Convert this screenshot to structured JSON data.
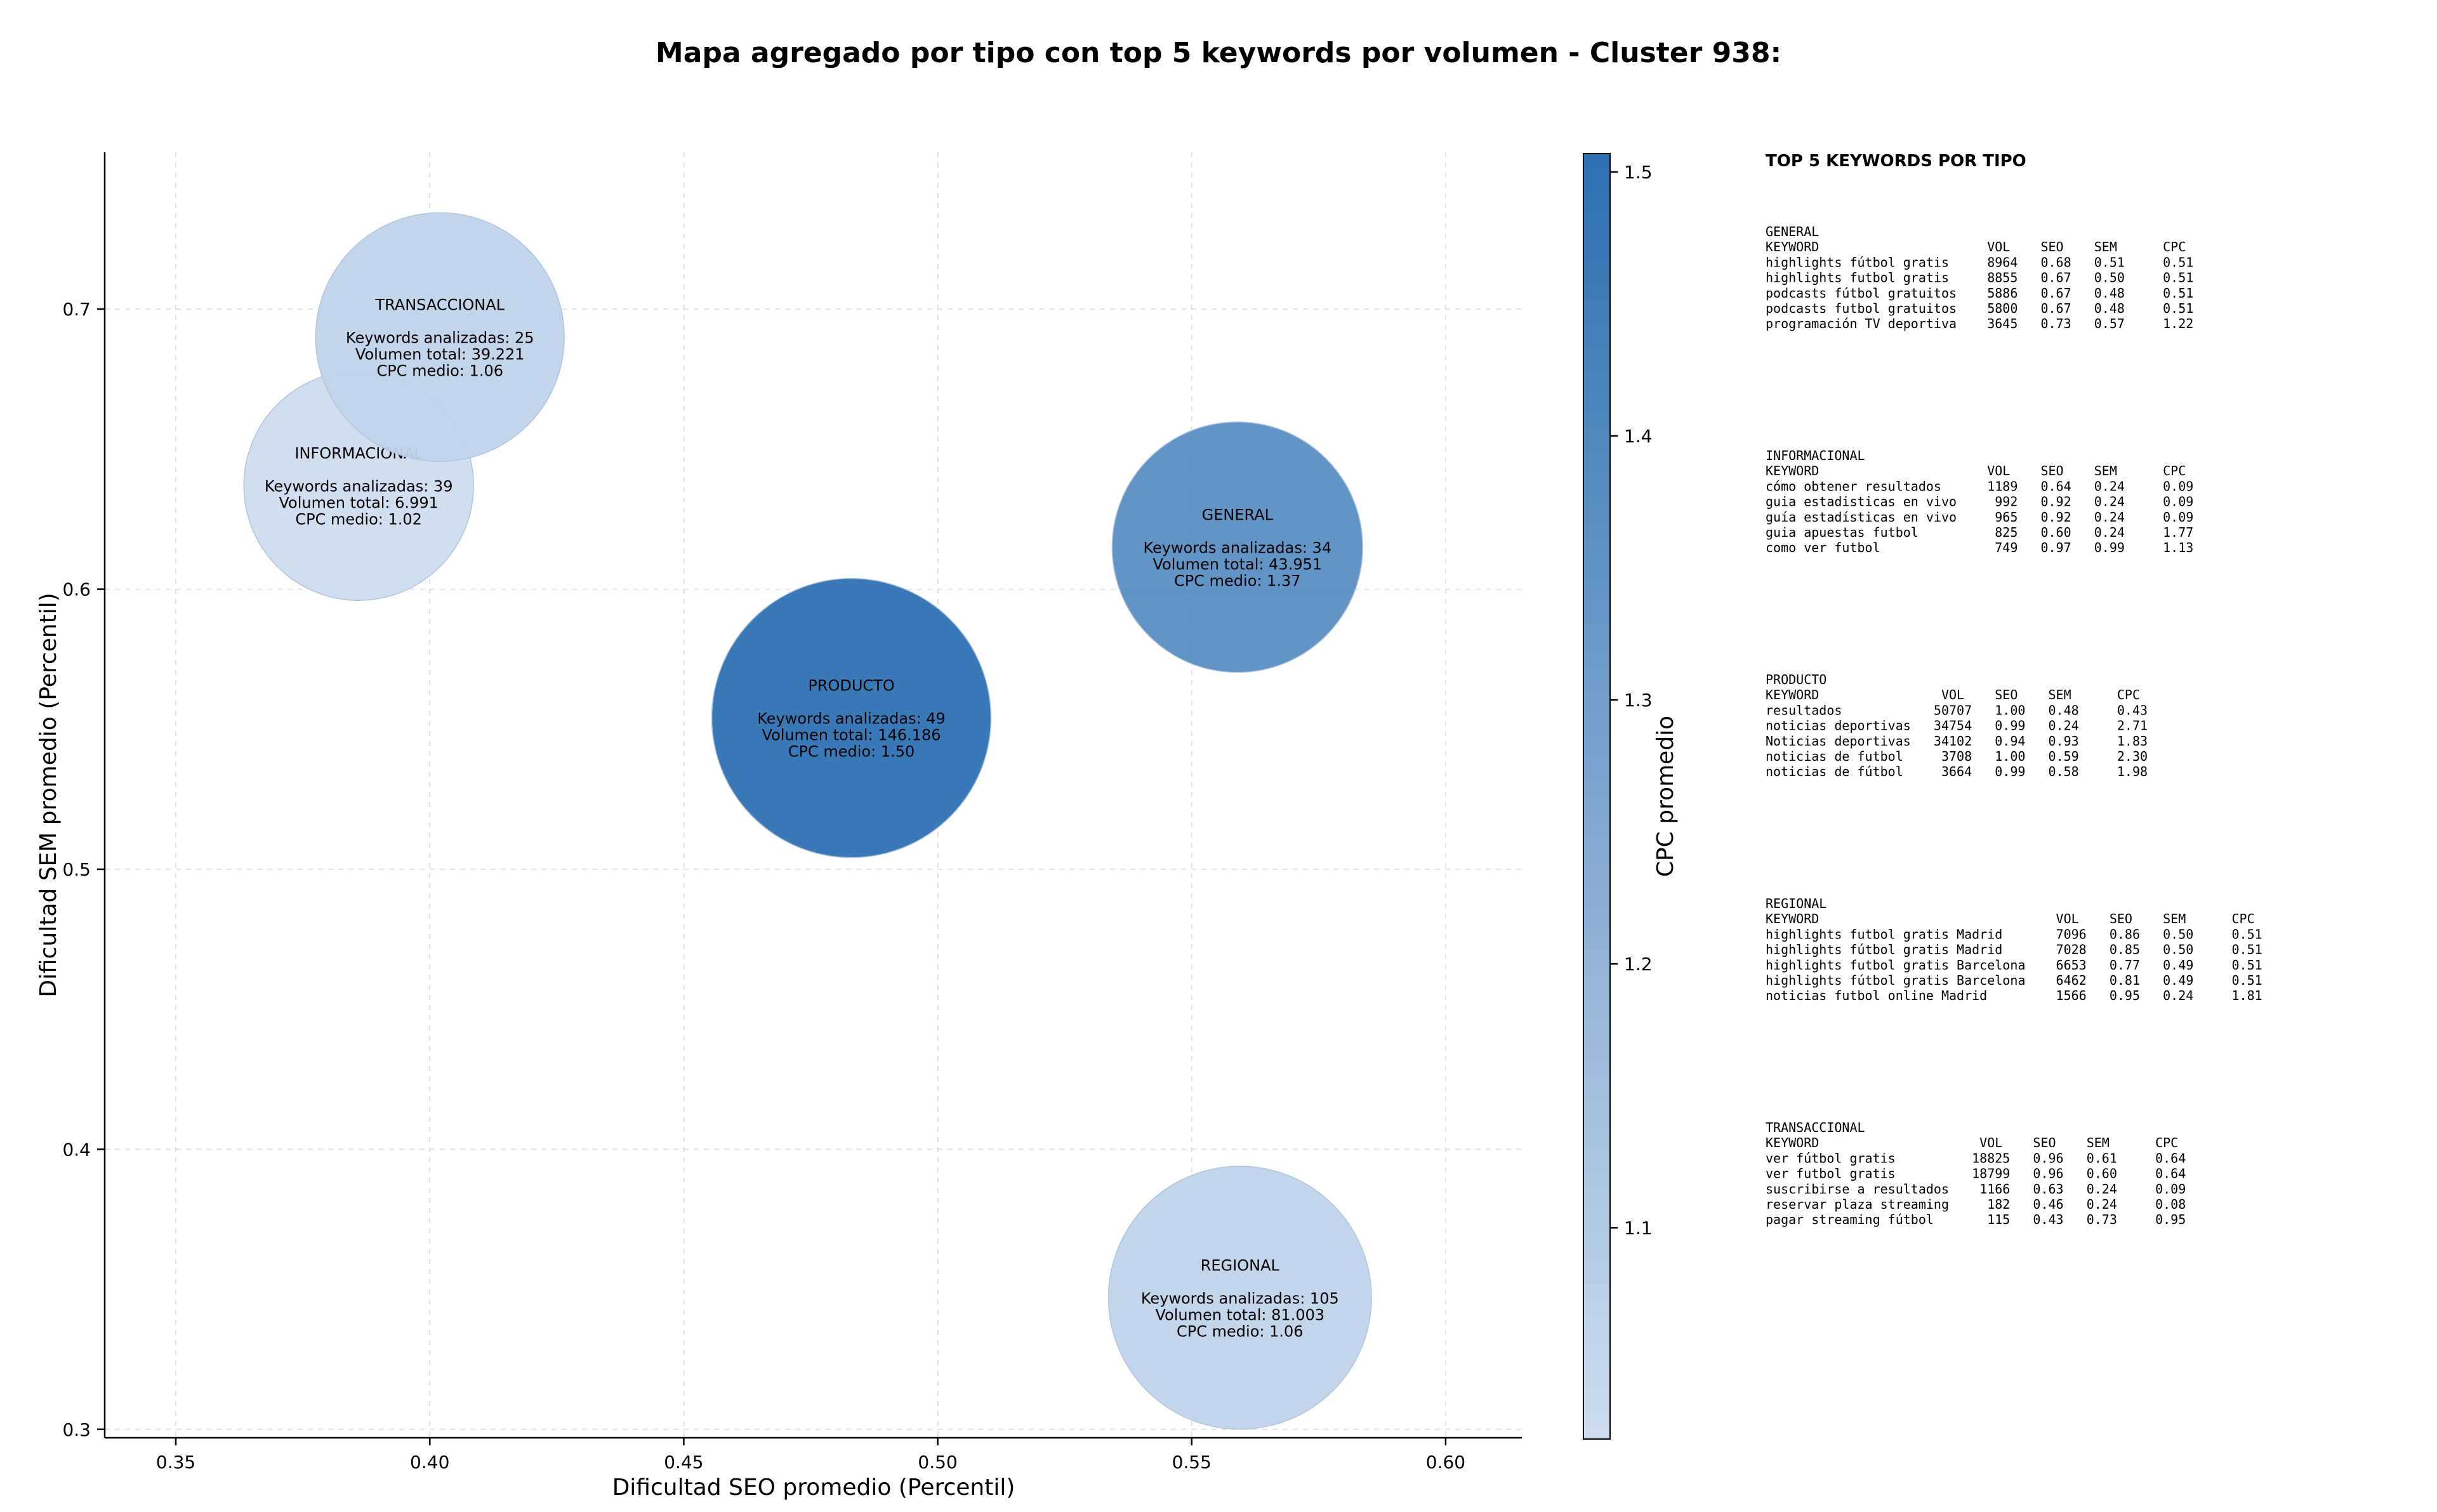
{
  "chart_data": {
    "type": "scatter",
    "title": "Mapa agregado por tipo con top 5 keywords por volumen - Cluster 938:",
    "xlabel": "Dificultad SEO promedio (Percentil)",
    "ylabel": "Dificultad SEM promedio (Percentil)",
    "xlim": [
      0.336,
      0.615
    ],
    "ylim": [
      0.297,
      0.756
    ],
    "xticks": [
      0.35,
      0.4,
      0.45,
      0.5,
      0.55,
      0.6
    ],
    "xtick_labels": [
      "0.35",
      "0.40",
      "0.45",
      "0.50",
      "0.55",
      "0.60"
    ],
    "yticks": [
      0.3,
      0.4,
      0.5,
      0.6,
      0.7
    ],
    "ytick_labels": [
      "0.3",
      "0.4",
      "0.5",
      "0.6",
      "0.7"
    ],
    "grid": true,
    "points": [
      {
        "name": "INFORMACIONAL",
        "x": 0.386,
        "y": 0.637,
        "keywords": 39,
        "volume": "6.991",
        "cpc": 1.02,
        "lines": [
          "INFORMACIONAL",
          "",
          "Keywords analizadas: 39",
          "Volumen total: 6.991",
          "CPC medio: 1.02"
        ]
      },
      {
        "name": "TRANSACCIONAL",
        "x": 0.402,
        "y": 0.69,
        "keywords": 25,
        "volume": "39.221",
        "cpc": 1.06,
        "lines": [
          "TRANSACCIONAL",
          "",
          "Keywords analizadas: 25",
          "Volumen total: 39.221",
          "CPC medio: 1.06"
        ]
      },
      {
        "name": "PRODUCTO",
        "x": 0.483,
        "y": 0.554,
        "keywords": 49,
        "volume": "146.186",
        "cpc": 1.5,
        "lines": [
          "PRODUCTO",
          "",
          "Keywords analizadas: 49",
          "Volumen total: 146.186",
          "CPC medio: 1.50"
        ]
      },
      {
        "name": "GENERAL",
        "x": 0.559,
        "y": 0.615,
        "keywords": 34,
        "volume": "43.951",
        "cpc": 1.37,
        "lines": [
          "GENERAL",
          "",
          "Keywords analizadas: 34",
          "Volumen total: 43.951",
          "CPC medio: 1.37"
        ]
      },
      {
        "name": "REGIONAL",
        "x": 0.5595,
        "y": 0.347,
        "keywords": 105,
        "volume": "81.003",
        "cpc": 1.06,
        "lines": [
          "REGIONAL",
          "",
          "Keywords analizadas: 105",
          "Volumen total: 81.003",
          "CPC medio: 1.06"
        ]
      }
    ],
    "colorbar": {
      "label": "CPC promedio",
      "min": 1.02,
      "max": 1.507,
      "ticks": [
        1.1,
        1.2,
        1.3,
        1.4,
        1.5
      ],
      "tick_labels": [
        "1.1",
        "1.2",
        "1.3",
        "1.4",
        "1.5"
      ],
      "color_low": "#cddcee",
      "color_high": "#2d70b2"
    },
    "side_panel": {
      "title": "TOP 5 KEYWORDS POR TIPO",
      "blocks": [
        {
          "lines": [
            "GENERAL",
            "KEYWORD                      VOL    SEO    SEM      CPC",
            "highlights fútbol gratis     8964   0.68   0.51     0.51",
            "highlights futbol gratis     8855   0.67   0.50     0.51",
            "podcasts fútbol gratuitos    5886   0.67   0.48     0.51",
            "podcasts futbol gratuitos    5800   0.67   0.48     0.51",
            "programación TV deportiva    3645   0.73   0.57     1.22"
          ]
        },
        {
          "lines": [
            "INFORMACIONAL",
            "KEYWORD                      VOL    SEO    SEM      CPC",
            "cómo obtener resultados      1189   0.64   0.24     0.09",
            "guia estadisticas en vivo     992   0.92   0.24     0.09",
            "guía estadísticas en vivo     965   0.92   0.24     0.09",
            "guia apuestas futbol          825   0.60   0.24     1.77",
            "como ver futbol               749   0.97   0.99     1.13"
          ]
        },
        {
          "lines": [
            "PRODUCTO",
            "KEYWORD                VOL    SEO    SEM      CPC",
            "resultados            50707   1.00   0.48     0.43",
            "noticias deportivas   34754   0.99   0.24     2.71",
            "Noticias deportivas   34102   0.94   0.93     1.83",
            "noticias de futbol     3708   1.00   0.59     2.30",
            "noticias de fútbol     3664   0.99   0.58     1.98"
          ]
        },
        {
          "lines": [
            "REGIONAL",
            "KEYWORD                               VOL    SEO    SEM      CPC",
            "highlights futbol gratis Madrid       7096   0.86   0.50     0.51",
            "highlights fútbol gratis Madrid       7028   0.85   0.50     0.51",
            "highlights futbol gratis Barcelona    6653   0.77   0.49     0.51",
            "highlights fútbol gratis Barcelona    6462   0.81   0.49     0.51",
            "noticias futbol online Madrid         1566   0.95   0.24     1.81"
          ]
        },
        {
          "lines": [
            "TRANSACCIONAL",
            "KEYWORD                     VOL    SEO    SEM      CPC",
            "ver fútbol gratis          18825   0.96   0.61     0.64",
            "ver futbol gratis          18799   0.96   0.60     0.64",
            "suscribirse a resultados    1166   0.63   0.24     0.09",
            "reservar plaza streaming     182   0.46   0.24     0.08",
            "pagar streaming fútbol       115   0.43   0.73     0.95"
          ]
        }
      ]
    }
  }
}
